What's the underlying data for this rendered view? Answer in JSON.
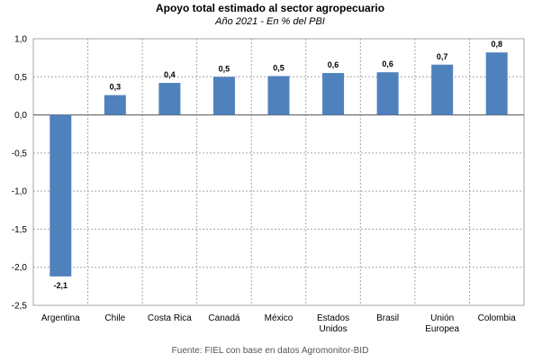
{
  "chart_data": {
    "type": "bar",
    "title": "Apoyo total estimado al sector agropecuario",
    "subtitle": "Año 2021 - En % del PBI",
    "categories": [
      [
        "Argentina"
      ],
      [
        "Chile"
      ],
      [
        "Costa Rica"
      ],
      [
        "Canadá"
      ],
      [
        "México"
      ],
      [
        "Estados",
        "Unidos"
      ],
      [
        "Brasil"
      ],
      [
        "Unión",
        "Europea"
      ],
      [
        "Colombia"
      ]
    ],
    "values": [
      -2.1,
      0.3,
      0.4,
      0.5,
      0.5,
      0.6,
      0.6,
      0.7,
      0.8
    ],
    "bar_heights": [
      -2.12,
      0.26,
      0.42,
      0.5,
      0.51,
      0.55,
      0.56,
      0.66,
      0.82
    ],
    "data_labels": [
      "-2,1",
      "0,3",
      "0,4",
      "0,5",
      "0,5",
      "0,6",
      "0,6",
      "0,7",
      "0,8"
    ],
    "yticks": [
      1.0,
      0.5,
      0.0,
      -0.5,
      -1.0,
      -1.5,
      -2.0,
      -2.5
    ],
    "ytick_labels": [
      "1,0",
      "0,5",
      "0,0",
      "-0,5",
      "-1,0",
      "-1,5",
      "-2,0",
      "-2,5"
    ],
    "ylim": [
      -2.5,
      1.0
    ],
    "grid": true,
    "bar_color": "#4f81bd",
    "grid_color": "#a6a6a6",
    "source": "Fuente: FIEL con base en datos Agromonitor-BID"
  }
}
